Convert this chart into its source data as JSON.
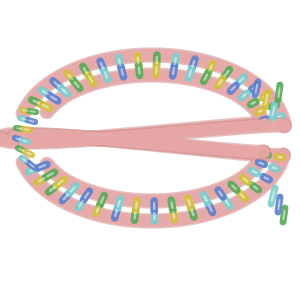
{
  "bg_color": "#ffffff",
  "strand_color": "#e8a8a8",
  "strand_edge_color": "#cc8888",
  "base_colors": [
    "#7ecece",
    "#5aaa5a",
    "#d4c040",
    "#6080cc",
    "#cc8888"
  ],
  "figsize": [
    3.0,
    3.0
  ],
  "dpi": 100,
  "base_sequence_upper": [
    1,
    0,
    3,
    2,
    1,
    3,
    0,
    2,
    1,
    0,
    3,
    2,
    1,
    0,
    3,
    2,
    1,
    0,
    3,
    2,
    1,
    0
  ],
  "base_sequence_lower": [
    0,
    2,
    1,
    3,
    0,
    2,
    3,
    1,
    0,
    2,
    1,
    3,
    0,
    2,
    1,
    3,
    0,
    2,
    1,
    3,
    0,
    2
  ]
}
